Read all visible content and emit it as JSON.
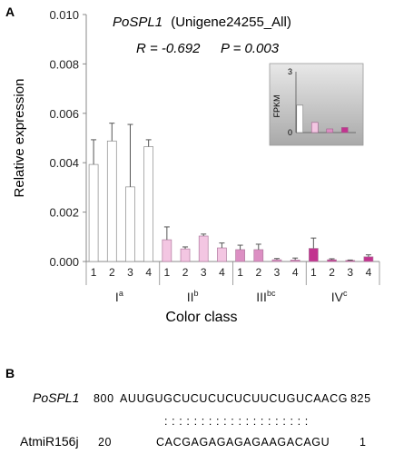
{
  "figure": {
    "panel_a_label": "A",
    "panel_b_label": "B",
    "gene_label": "PoSPL1",
    "gene_id": "(Unigene24255_All)",
    "stats_r": "R = -0.692",
    "stats_p": "P = 0.003",
    "inset": {
      "ylabel": "FPKM",
      "y_max_tick": "3",
      "y_min_tick": "0"
    }
  },
  "chart_data": [
    {
      "type": "bar",
      "ylabel": "Relative expression",
      "xlabel": "Color class",
      "ylim": [
        0,
        0.01
      ],
      "yticks": [
        "0.000",
        "0.002",
        "0.004",
        "0.006",
        "0.008",
        "0.010"
      ],
      "categories": [
        "1",
        "2",
        "3",
        "4",
        "1",
        "2",
        "3",
        "4",
        "1",
        "2",
        "3",
        "4",
        "1",
        "2",
        "3",
        "4"
      ],
      "groups": [
        {
          "name": "I",
          "sup": "a"
        },
        {
          "name": "II",
          "sup": "b"
        },
        {
          "name": "III",
          "sup": "bc"
        },
        {
          "name": "IV",
          "sup": "c"
        }
      ],
      "values": [
        0.00393,
        0.00488,
        0.00302,
        0.00465,
        0.00088,
        0.00051,
        0.00103,
        0.00055,
        0.00048,
        0.00048,
        7e-05,
        6e-05,
        0.00053,
        7e-05,
        4e-05,
        0.00019
      ],
      "errors": [
        0.001,
        0.00072,
        0.00253,
        0.00028,
        0.00052,
        8e-05,
        8e-05,
        0.0002,
        0.00018,
        0.00022,
        5e-05,
        8e-05,
        0.00042,
        4e-05,
        2e-05,
        8e-05
      ],
      "group_colors": [
        "#ffffff",
        "#f3c6e2",
        "#dc8fc3",
        "#c2338f"
      ]
    },
    {
      "type": "bar",
      "ylabel": "FPKM",
      "ylim": [
        0,
        3
      ],
      "categories": [
        "I",
        "II",
        "III",
        "IV"
      ],
      "values": [
        1.35,
        0.5,
        0.18,
        0.25
      ],
      "colors": [
        "#ffffff",
        "#f3c6e2",
        "#dc8fc3",
        "#c2338f"
      ]
    }
  ],
  "alignment": {
    "top_name": "PoSPL1",
    "top_start": "800",
    "top_seq": "AUUGUGCUCUCUCUCUUCUGUCAACG",
    "top_end": "825",
    "match_marks": ": : : : : : : : : : : : : : : : : : : :",
    "bottom_name": "AtmiR156j",
    "bottom_start": "20",
    "bottom_seq": "CACGAGAGAGAGAAGACAGU",
    "bottom_end": "1"
  }
}
